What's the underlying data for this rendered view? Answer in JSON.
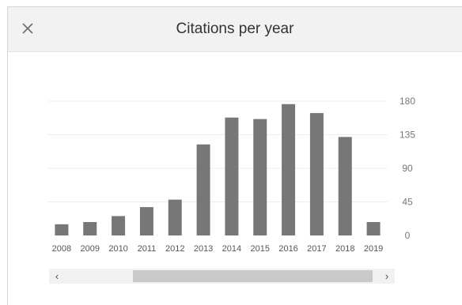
{
  "dialog": {
    "title": "Citations per year",
    "close_icon": "close-icon"
  },
  "scrollbar": {
    "left_icon": "chevron-left-icon",
    "right_icon": "chevron-right-icon",
    "left_glyph": "‹",
    "right_glyph": "›"
  },
  "colors": {
    "bar": "#777777",
    "gridline": "#eeeeee",
    "tick_text": "#777777"
  },
  "chart_data": {
    "type": "bar",
    "categories": [
      "2008",
      "2009",
      "2010",
      "2011",
      "2012",
      "2013",
      "2014",
      "2015",
      "2016",
      "2017",
      "2018",
      "2019"
    ],
    "values": [
      15,
      18,
      26,
      38,
      48,
      122,
      158,
      156,
      176,
      164,
      132,
      18
    ],
    "y_ticks": [
      "0",
      "45",
      "90",
      "135",
      "180"
    ],
    "ylim": [
      0,
      180
    ],
    "y_axis_side": "right",
    "grid": true,
    "title": "Citations per year",
    "xlabel": "",
    "ylabel": ""
  }
}
